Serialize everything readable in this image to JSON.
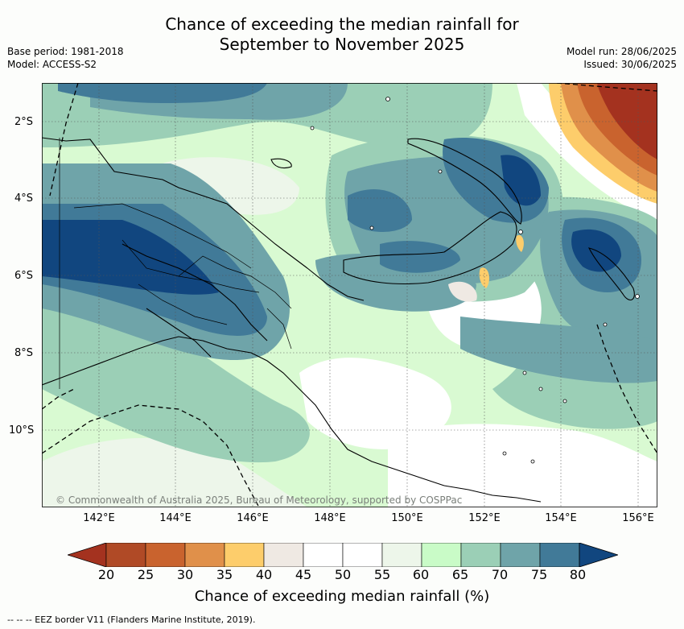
{
  "title_line1": "Chance of exceeding the median rainfall for",
  "title_line2": "September to November 2025",
  "base_period": "Base period: 1981-2018",
  "model": "Model: ACCESS-S2",
  "model_run": "Model run: 28/06/2025",
  "issued": "Issued: 30/06/2025",
  "lat_ticks": [
    "2°S",
    "4°S",
    "6°S",
    "8°S",
    "10°S"
  ],
  "lon_ticks": [
    "142°E",
    "144°E",
    "146°E",
    "148°E",
    "150°E",
    "152°E",
    "154°E",
    "156°E"
  ],
  "copyright": "© Commonwealth of Australia 2025, Bureau of Meteorology, supported by COSPPac",
  "colorbar": {
    "ticks": [
      "20",
      "25",
      "30",
      "35",
      "40",
      "45",
      "50",
      "55",
      "60",
      "65",
      "70",
      "75",
      "80"
    ],
    "colors": [
      "#a4321f",
      "#b04a26",
      "#c9632e",
      "#e0904a",
      "#fdcd6b",
      "#efe9e3",
      "#ffffff",
      "#ffffff",
      "#edf6ea",
      "#c9fbc7",
      "#9bcfb6",
      "#6fa4a9",
      "#417a98",
      "#11467f"
    ],
    "label": "Chance of exceeding median rainfall (%)"
  },
  "legend_text": "--  --  -- EEZ border V11 (Flanders Marine Institute, 2019)."
}
